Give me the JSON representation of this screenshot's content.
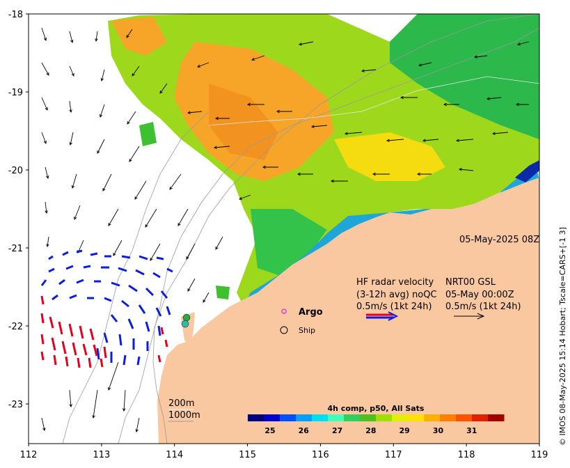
{
  "map": {
    "x_ticks": [
      "112",
      "113",
      "114",
      "115",
      "116",
      "117",
      "118",
      "119"
    ],
    "y_ticks": [
      "-18",
      "-19",
      "-20",
      "-21",
      "-22",
      "-23"
    ],
    "timestamp": "05-May-2025 08Z",
    "credit": "© IMOS 08-May-2025 15:14 Hobart; Tscale=CARS+[-1 3]",
    "colors": {
      "land": "#f9c7a0",
      "red_vectors": "#e6001c",
      "blue_vectors": "#0a1ee0",
      "argo": "#e040c8"
    }
  },
  "legend": {
    "hf_line1": "HF radar velocity",
    "hf_line2": "(3-12h avg) noQC",
    "hf_line3": "0.5m/s (1kt 24h)",
    "nrt_line1": "NRT00 GSL",
    "nrt_line2": "05-May 00:00Z",
    "nrt_line3": "0.5m/s (1kt 24h)",
    "argo_label": "Argo",
    "ship_label": "Ship",
    "isobath_200": "200m",
    "isobath_1000": "1000m"
  },
  "colorbar": {
    "title": "4h comp, p50, All Sats",
    "ticks": [
      "25",
      "26",
      "27",
      "28",
      "29",
      "30",
      "31"
    ],
    "colors": [
      "#00007f",
      "#0000d0",
      "#0050ff",
      "#00a0ff",
      "#00e0f0",
      "#40ffb8",
      "#30d060",
      "#50c020",
      "#a0e000",
      "#e0f000",
      "#ffe000",
      "#ffb000",
      "#ff8000",
      "#ff5000",
      "#e02000",
      "#a00000"
    ]
  }
}
